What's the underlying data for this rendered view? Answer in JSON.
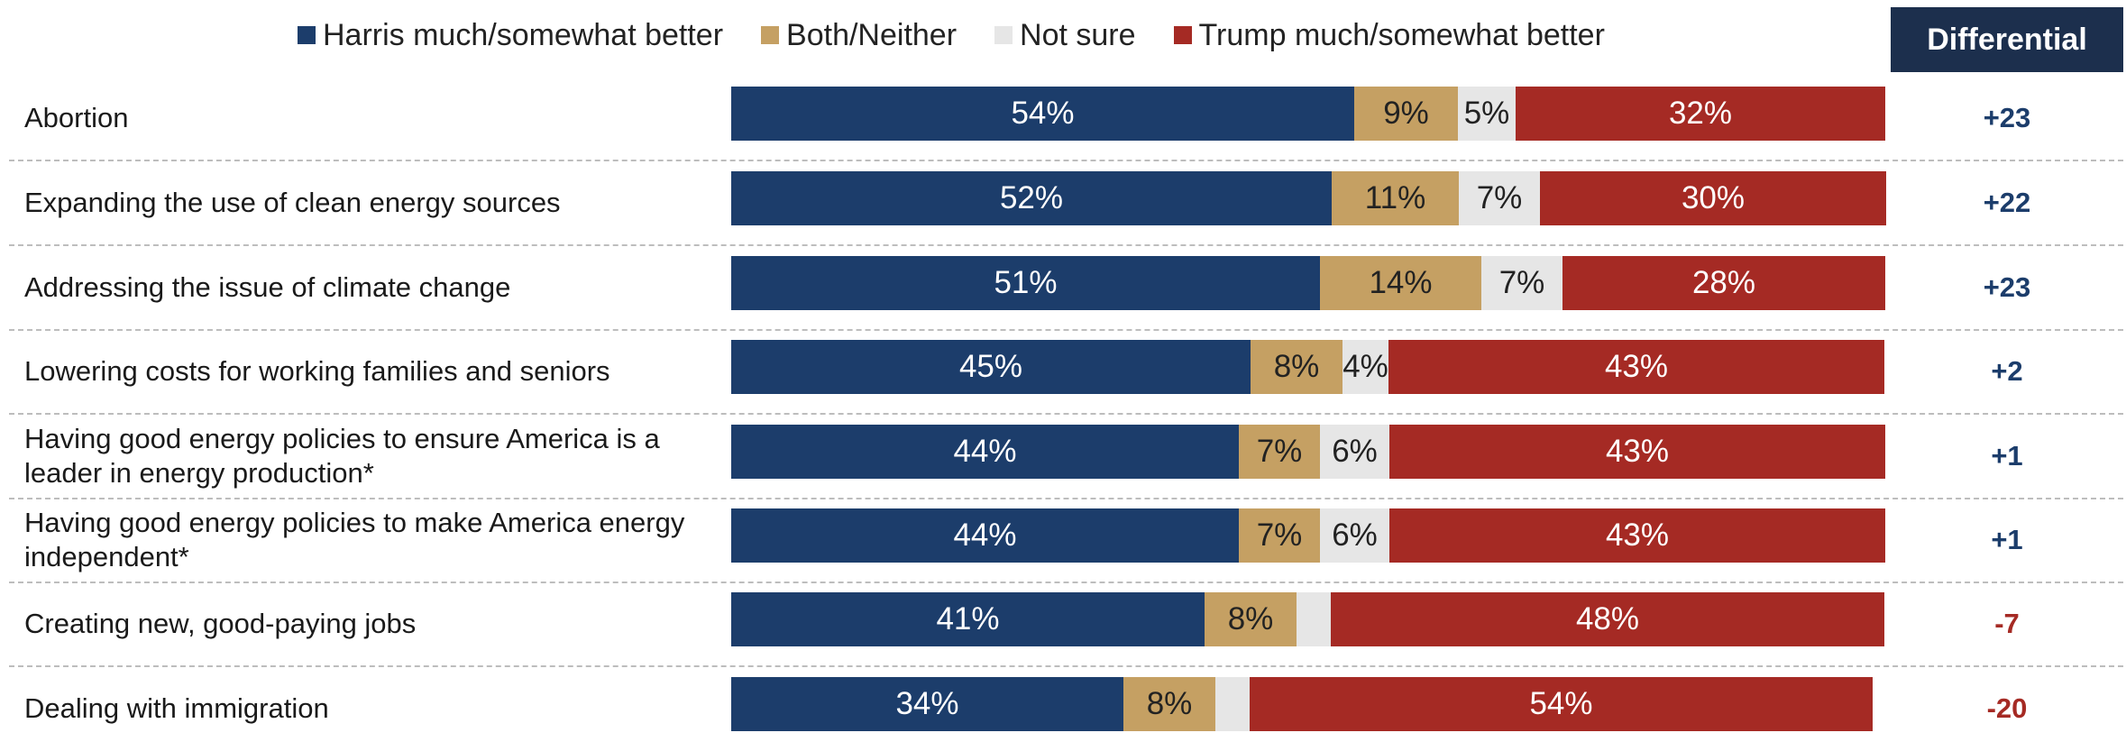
{
  "legend": [
    {
      "label": "Harris much/somewhat better",
      "color": "#1c3d6b"
    },
    {
      "label": "Both/Neither",
      "color": "#c5a063"
    },
    {
      "label": "Not sure",
      "color": "#e6e6e6"
    },
    {
      "label": "Trump much/somewhat better",
      "color": "#a52a24"
    }
  ],
  "differential_header": "Differential",
  "colors": {
    "harris": "#1c3d6b",
    "both": "#c5a063",
    "not_sure": "#e6e6e6",
    "trump": "#a52a24",
    "positive_diff": "#1c3d6b",
    "negative_diff": "#a52a24",
    "header_bg": "#1c2f4d"
  },
  "chart_data": {
    "type": "bar",
    "stacked": true,
    "orientation": "horizontal",
    "categories": [
      "Abortion",
      "Expanding the use of clean energy sources",
      "Addressing the issue of climate change",
      "Lowering costs for working families and seniors",
      "Having good energy policies to ensure America is a leader in energy production*",
      "Having good energy policies to make America energy independent*",
      "Creating new, good-paying jobs",
      "Dealing with immigration"
    ],
    "series": [
      {
        "name": "Harris much/somewhat better",
        "values": [
          54,
          52,
          51,
          45,
          44,
          44,
          41,
          34
        ],
        "labels": [
          "54%",
          "52%",
          "51%",
          "45%",
          "44%",
          "44%",
          "41%",
          "34%"
        ]
      },
      {
        "name": "Both/Neither",
        "values": [
          9,
          11,
          14,
          8,
          7,
          7,
          8,
          8
        ],
        "labels": [
          "9%",
          "11%",
          "14%",
          "8%",
          "7%",
          "7%",
          "8%",
          "8%"
        ]
      },
      {
        "name": "Not sure",
        "values": [
          5,
          7,
          7,
          4,
          6,
          6,
          3,
          3
        ],
        "labels": [
          "5%",
          "7%",
          "7%",
          "4%",
          "6%",
          "6%",
          "",
          ""
        ]
      },
      {
        "name": "Trump much/somewhat better",
        "values": [
          32,
          30,
          28,
          43,
          43,
          43,
          48,
          54
        ],
        "labels": [
          "32%",
          "30%",
          "28%",
          "43%",
          "43%",
          "43%",
          "48%",
          "54%"
        ]
      }
    ],
    "differential": [
      "+23",
      "+22",
      "+23",
      "+2",
      "+1",
      "+1",
      "-7",
      "-20"
    ]
  }
}
